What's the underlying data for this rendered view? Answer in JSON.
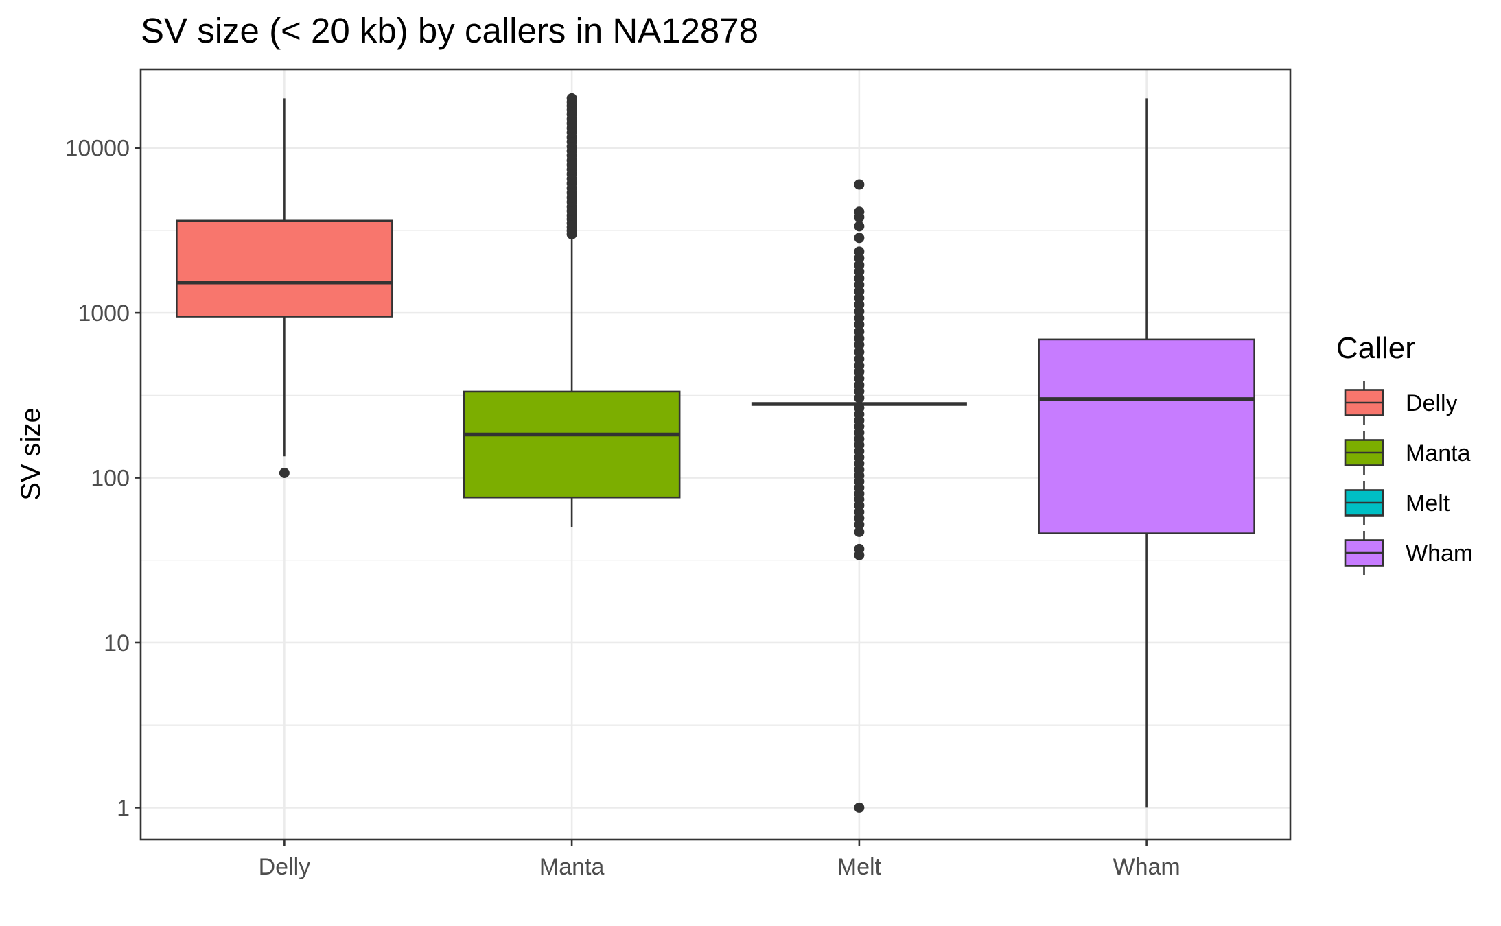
{
  "chart_data": {
    "type": "boxplot",
    "title": "SV size (< 20 kb) by callers in NA12878",
    "xlabel": "",
    "ylabel": "SV size",
    "y_scale": "log10",
    "ylim": [
      0.64,
      30000
    ],
    "y_ticks": [
      1,
      10,
      100,
      1000,
      10000
    ],
    "y_tick_labels": [
      "1",
      "10",
      "100",
      "1000",
      "10000"
    ],
    "grid": true,
    "legend": {
      "title": "Caller",
      "placement": "right",
      "entries": [
        "Delly",
        "Manta",
        "Melt",
        "Wham"
      ]
    },
    "categories": [
      "Delly",
      "Manta",
      "Melt",
      "Wham"
    ],
    "boxes": [
      {
        "name": "Delly",
        "color": "#F8766D",
        "whisker_low": 135,
        "q1": 950,
        "median": 1530,
        "q3": 3620,
        "whisker_high": 20000,
        "outliers": [
          107
        ]
      },
      {
        "name": "Manta",
        "color": "#7CAE00",
        "whisker_low": 50,
        "q1": 76,
        "median": 183,
        "q3": 333,
        "whisker_high": 3000,
        "outliers": [
          3000,
          3150,
          3300,
          3500,
          3700,
          3900,
          4150,
          4400,
          4700,
          5000,
          5350,
          5700,
          6100,
          6500,
          6950,
          7400,
          7900,
          8400,
          9000,
          9600,
          10200,
          10900,
          11600,
          12400,
          13200,
          14100,
          15000,
          16000,
          17000,
          18000,
          19000,
          20000
        ]
      },
      {
        "name": "Melt",
        "color": "#00BFC4",
        "whisker_low": 280,
        "q1": 280,
        "median": 280,
        "q3": 280,
        "whisker_high": 280,
        "outliers": [
          1,
          34,
          37,
          47,
          52,
          57,
          62,
          68,
          74,
          80,
          87,
          95,
          103,
          112,
          122,
          133,
          145,
          158,
          172,
          188,
          205,
          223,
          243,
          265,
          305,
          335,
          365,
          400,
          440,
          480,
          525,
          580,
          640,
          700,
          770,
          850,
          930,
          1020,
          1120,
          1230,
          1350,
          1480,
          1620,
          1780,
          1950,
          2150,
          2350,
          2850,
          3350,
          3800,
          4100,
          6000
        ]
      },
      {
        "name": "Wham",
        "color": "#C77CFF",
        "whisker_low": 1,
        "q1": 46,
        "median": 300,
        "q3": 690,
        "whisker_high": 20000,
        "outliers": []
      }
    ]
  }
}
